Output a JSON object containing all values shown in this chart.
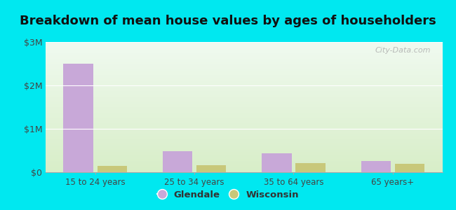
{
  "title": "Breakdown of mean house values by ages of householders",
  "categories": [
    "15 to 24 years",
    "25 to 34 years",
    "35 to 64 years",
    "65 years+"
  ],
  "glendale_values": [
    2500000,
    480000,
    430000,
    260000
  ],
  "wisconsin_values": [
    145000,
    165000,
    215000,
    195000
  ],
  "glendale_color": "#c8a8d8",
  "wisconsin_color": "#c8c87a",
  "ylim": [
    0,
    3000000
  ],
  "yticks": [
    0,
    1000000,
    2000000,
    3000000
  ],
  "ytick_labels": [
    "$0",
    "$1M",
    "$2M",
    "$3M"
  ],
  "outer_bg": "#00e8f0",
  "title_fontsize": 13,
  "bar_width": 0.3,
  "legend_labels": [
    "Glendale",
    "Wisconsin"
  ],
  "watermark": "City-Data.com",
  "grad_top_color": "#f0faf0",
  "grad_bottom_color": "#d8eec8"
}
